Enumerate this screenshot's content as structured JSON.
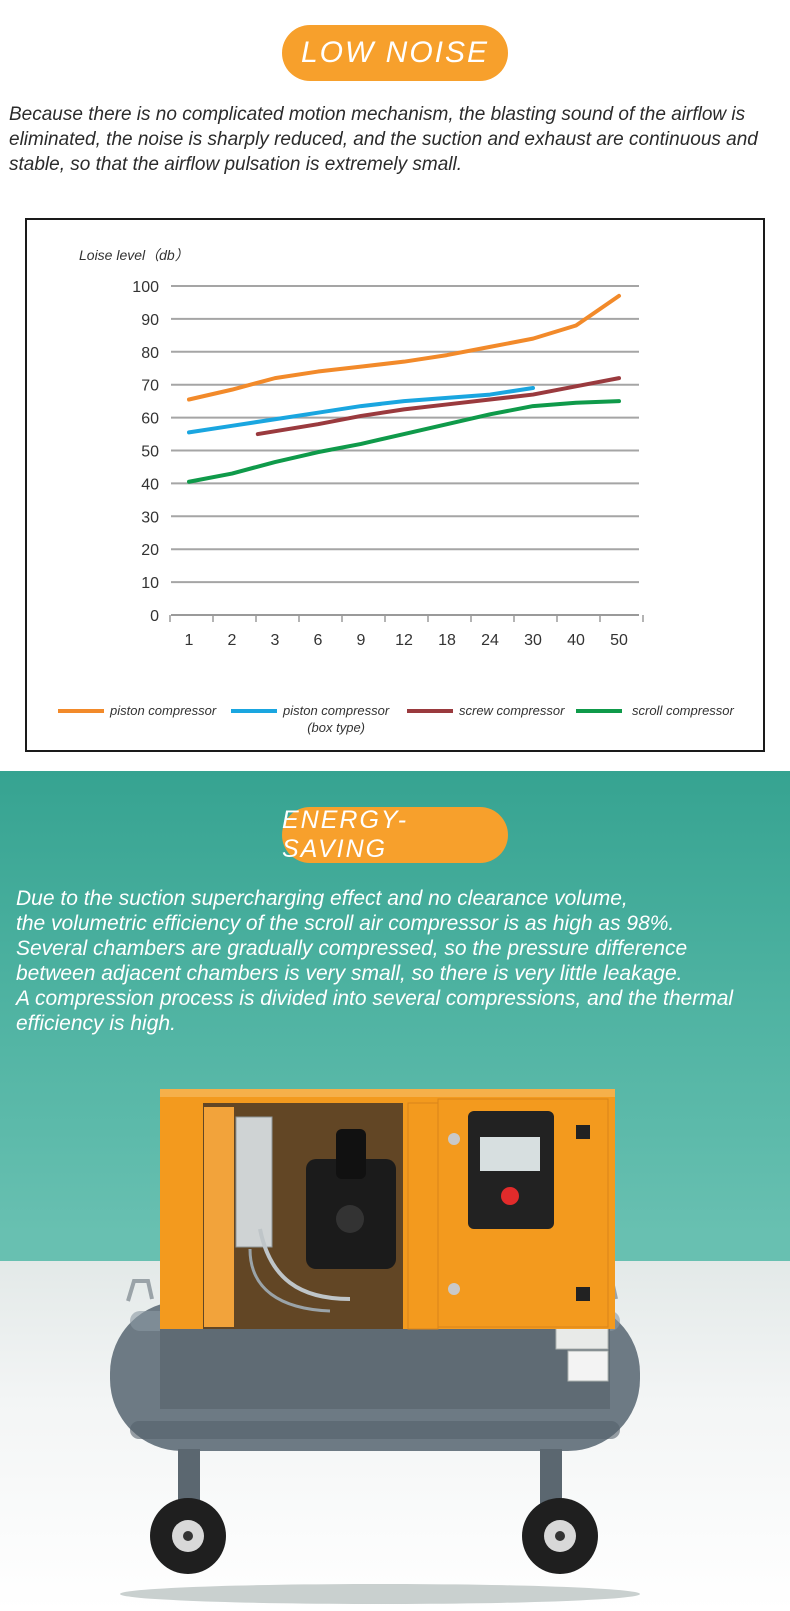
{
  "top": {
    "pill_label": "LOW NOISE",
    "description": "Because there is no complicated motion mechanism, the blasting sound of the airflow is eliminated, the noise is sharply reduced, and the suction and exhaust are continuous and stable, so that the airflow pulsation is extremely small."
  },
  "chart_data": {
    "type": "line",
    "ylabel": "Loise level（db）",
    "ylim": [
      0,
      100
    ],
    "yticks": [
      "0",
      "10",
      "20",
      "30",
      "40",
      "50",
      "60",
      "70",
      "80",
      "90",
      "100"
    ],
    "categories": [
      "1",
      "2",
      "3",
      "6",
      "9",
      "12",
      "18",
      "24",
      "30",
      "40",
      "50"
    ],
    "series": [
      {
        "name": "piston compressor",
        "color": "#f28a2a",
        "x_start": 0,
        "values": [
          65.5,
          68.5,
          72,
          74,
          75.5,
          77,
          79,
          81.5,
          84,
          88,
          97
        ]
      },
      {
        "name": "piston compressor (box type)",
        "color": "#1aa6e0",
        "x_start": 0,
        "values": [
          55.5,
          57.5,
          59.5,
          61.5,
          63.5,
          65,
          66,
          67,
          69,
          null,
          null
        ]
      },
      {
        "name": "screw compressor",
        "color": "#9a3a3e",
        "x_start": 1.6,
        "values": [
          null,
          null,
          55,
          58,
          60.5,
          62.5,
          64,
          65.5,
          67,
          69.5,
          72
        ]
      },
      {
        "name": "scroll compressor",
        "color": "#0f9a4a",
        "x_start": 0,
        "values": [
          40.5,
          43,
          46.5,
          49.5,
          52,
          55,
          58,
          61,
          63.5,
          64.5,
          65
        ]
      }
    ],
    "legend": [
      {
        "line1": "piston compressor",
        "line2": ""
      },
      {
        "line1": "piston compressor",
        "line2": "(box type)"
      },
      {
        "line1": "screw compressor",
        "line2": ""
      },
      {
        "line1": "scroll compressor",
        "line2": ""
      }
    ],
    "grid": true,
    "legend_position": "bottom"
  },
  "bottom": {
    "pill_label": "ENERGY-SAVING",
    "description_lines": [
      "Due to the suction supercharging effect and no clearance volume,",
      "the volumetric efficiency of the scroll air compressor is as high as 98%.",
      "Several chambers are gradually compressed, so the pressure difference",
      "between adjacent chambers is very small, so there is very little leakage.",
      "A compression process is divided into several compressions, and the thermal",
      "efficiency is high."
    ]
  },
  "colors": {
    "accent_orange": "#f7a02c",
    "machine_orange": "#f39a1e",
    "tank_gray": "#6b7780",
    "teal_background": "#4fb3a2"
  }
}
